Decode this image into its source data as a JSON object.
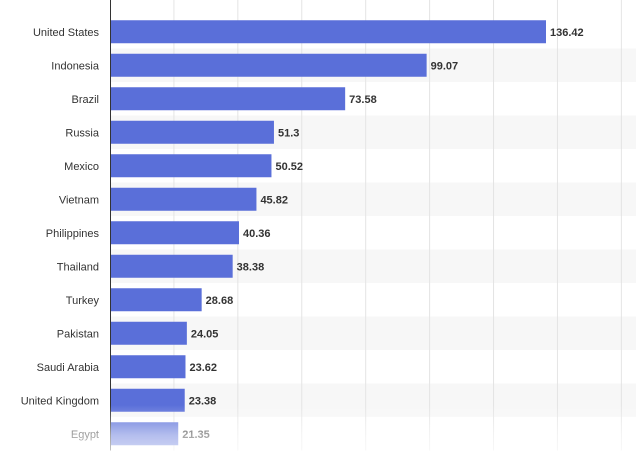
{
  "chart_data": {
    "type": "bar",
    "orientation": "horizontal",
    "categories": [
      "United States",
      "Indonesia",
      "Brazil",
      "Russia",
      "Mexico",
      "Vietnam",
      "Philippines",
      "Thailand",
      "Turkey",
      "Pakistan",
      "Saudi Arabia",
      "United Kingdom",
      "Egypt"
    ],
    "values": [
      136.42,
      99.07,
      73.58,
      51.3,
      50.52,
      45.82,
      40.36,
      38.38,
      28.68,
      24.05,
      23.62,
      23.38,
      21.35
    ],
    "value_labels": [
      "136.42",
      "99.07",
      "73.58",
      "51.3",
      "50.52",
      "45.82",
      "40.36",
      "38.38",
      "28.68",
      "24.05",
      "23.62",
      "23.38",
      "21.35"
    ],
    "title": "",
    "xlabel": "",
    "ylabel": "",
    "xlim": [
      0,
      160
    ],
    "grid": true,
    "legend": "none",
    "bar_color": "#5a6fd9",
    "label_color": "#333333",
    "value_label_color": "#333333",
    "band_color": "#f7f7f7",
    "grid_color": "#e4e4e4",
    "axis_color": "#333333"
  }
}
